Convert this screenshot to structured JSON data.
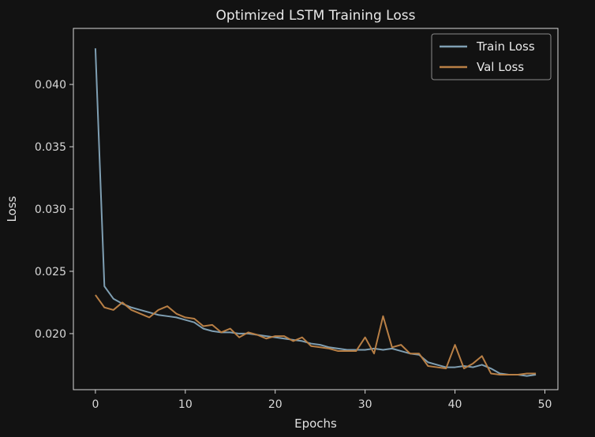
{
  "chart_data": {
    "type": "line",
    "title": "Optimized LSTM Training Loss",
    "xlabel": "Epochs",
    "ylabel": "Loss",
    "xlim": [
      -2.45,
      51.45
    ],
    "ylim": [
      0.0155,
      0.0445
    ],
    "x_ticks": [
      0,
      10,
      20,
      30,
      40,
      50
    ],
    "y_ticks": [
      0.02,
      0.025,
      0.03,
      0.035,
      0.04
    ],
    "y_tick_labels": [
      "0.020",
      "0.025",
      "0.030",
      "0.035",
      "0.040"
    ],
    "grid": false,
    "legend_position": "top-right",
    "x": [
      0,
      1,
      2,
      3,
      4,
      5,
      6,
      7,
      8,
      9,
      10,
      11,
      12,
      13,
      14,
      15,
      16,
      17,
      18,
      19,
      20,
      21,
      22,
      23,
      24,
      25,
      26,
      27,
      28,
      29,
      30,
      31,
      32,
      33,
      34,
      35,
      36,
      37,
      38,
      39,
      40,
      41,
      42,
      43,
      44,
      45,
      46,
      47,
      48,
      49
    ],
    "series": [
      {
        "name": "Train Loss",
        "color": "#7f9fb3",
        "values": [
          0.0429,
          0.0238,
          0.0228,
          0.0224,
          0.0221,
          0.0219,
          0.0217,
          0.0215,
          0.0214,
          0.0213,
          0.0211,
          0.0209,
          0.0204,
          0.0202,
          0.0201,
          0.0201,
          0.02,
          0.02,
          0.0199,
          0.0198,
          0.0197,
          0.0196,
          0.0195,
          0.0194,
          0.0192,
          0.0191,
          0.0189,
          0.0188,
          0.0187,
          0.0187,
          0.0187,
          0.0188,
          0.0187,
          0.0188,
          0.0186,
          0.0184,
          0.0183,
          0.0177,
          0.0175,
          0.0173,
          0.0173,
          0.0174,
          0.0173,
          0.0175,
          0.0172,
          0.0168,
          0.0167,
          0.0167,
          0.0166,
          0.0167
        ]
      },
      {
        "name": "Val Loss",
        "color": "#b87f45",
        "values": [
          0.0231,
          0.0221,
          0.0219,
          0.0225,
          0.0219,
          0.0216,
          0.0213,
          0.0219,
          0.0222,
          0.0216,
          0.0213,
          0.0212,
          0.0206,
          0.0207,
          0.0201,
          0.0204,
          0.0197,
          0.0201,
          0.0199,
          0.0196,
          0.0198,
          0.0198,
          0.0194,
          0.0197,
          0.019,
          0.0189,
          0.0188,
          0.0186,
          0.0186,
          0.0186,
          0.0197,
          0.0184,
          0.0214,
          0.0189,
          0.0191,
          0.0184,
          0.0184,
          0.0174,
          0.0173,
          0.0172,
          0.0191,
          0.0172,
          0.0176,
          0.0182,
          0.0168,
          0.0167,
          0.0167,
          0.0167,
          0.0168,
          0.0168
        ]
      }
    ]
  }
}
